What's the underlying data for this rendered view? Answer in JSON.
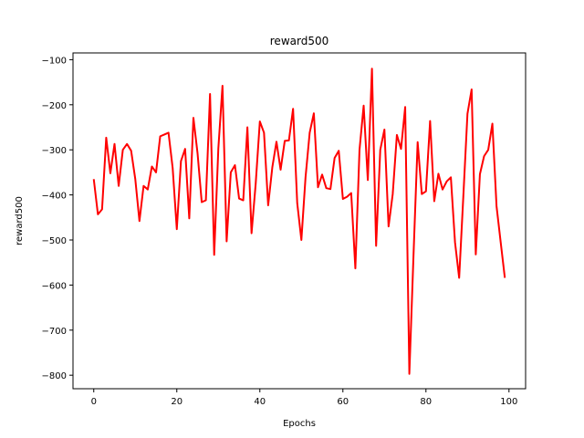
{
  "chart_data": {
    "type": "line",
    "title": "reward500",
    "xlabel": "Epochs",
    "ylabel": "reward500",
    "xlim": [
      -5,
      104
    ],
    "ylim": [
      -830,
      -85
    ],
    "xticks": [
      0,
      20,
      40,
      60,
      80,
      100
    ],
    "yticks": [
      -100,
      -200,
      -300,
      -400,
      -500,
      -600,
      -700,
      -800
    ],
    "grid": false,
    "series": [
      {
        "name": "reward500",
        "color": "#ff0000",
        "x": [
          0,
          1,
          2,
          3,
          4,
          5,
          6,
          7,
          8,
          9,
          10,
          11,
          12,
          13,
          14,
          15,
          16,
          17,
          18,
          19,
          20,
          21,
          22,
          23,
          24,
          25,
          26,
          27,
          28,
          29,
          30,
          31,
          32,
          33,
          34,
          35,
          36,
          37,
          38,
          39,
          40,
          41,
          42,
          43,
          44,
          45,
          46,
          47,
          48,
          49,
          50,
          51,
          52,
          53,
          54,
          55,
          56,
          57,
          58,
          59,
          60,
          61,
          62,
          63,
          64,
          65,
          66,
          67,
          68,
          69,
          70,
          71,
          72,
          73,
          74,
          75,
          76,
          77,
          78,
          79,
          80,
          81,
          82,
          83,
          84,
          85,
          86,
          87,
          88,
          89,
          90,
          91,
          92,
          93,
          94,
          95,
          96,
          97,
          98,
          99
        ],
        "values": [
          -365,
          -443,
          -432,
          -273,
          -352,
          -287,
          -380,
          -300,
          -287,
          -302,
          -365,
          -458,
          -380,
          -388,
          -337,
          -350,
          -270,
          -266,
          -262,
          -340,
          -476,
          -325,
          -298,
          -452,
          -229,
          -308,
          -416,
          -412,
          -176,
          -533,
          -297,
          -158,
          -503,
          -350,
          -334,
          -408,
          -412,
          -250,
          -485,
          -375,
          -237,
          -262,
          -423,
          -339,
          -282,
          -344,
          -280,
          -279,
          -209,
          -418,
          -500,
          -361,
          -262,
          -219,
          -383,
          -355,
          -385,
          -387,
          -318,
          -302,
          -409,
          -404,
          -396,
          -563,
          -300,
          -202,
          -367,
          -120,
          -513,
          -300,
          -255,
          -470,
          -398,
          -267,
          -298,
          -205,
          -797,
          -535,
          -283,
          -398,
          -392,
          -236,
          -414,
          -353,
          -388,
          -370,
          -361,
          -505,
          -584,
          -404,
          -220,
          -166,
          -532,
          -354,
          -314,
          -300,
          -242,
          -425,
          -505,
          -584
        ]
      }
    ]
  }
}
